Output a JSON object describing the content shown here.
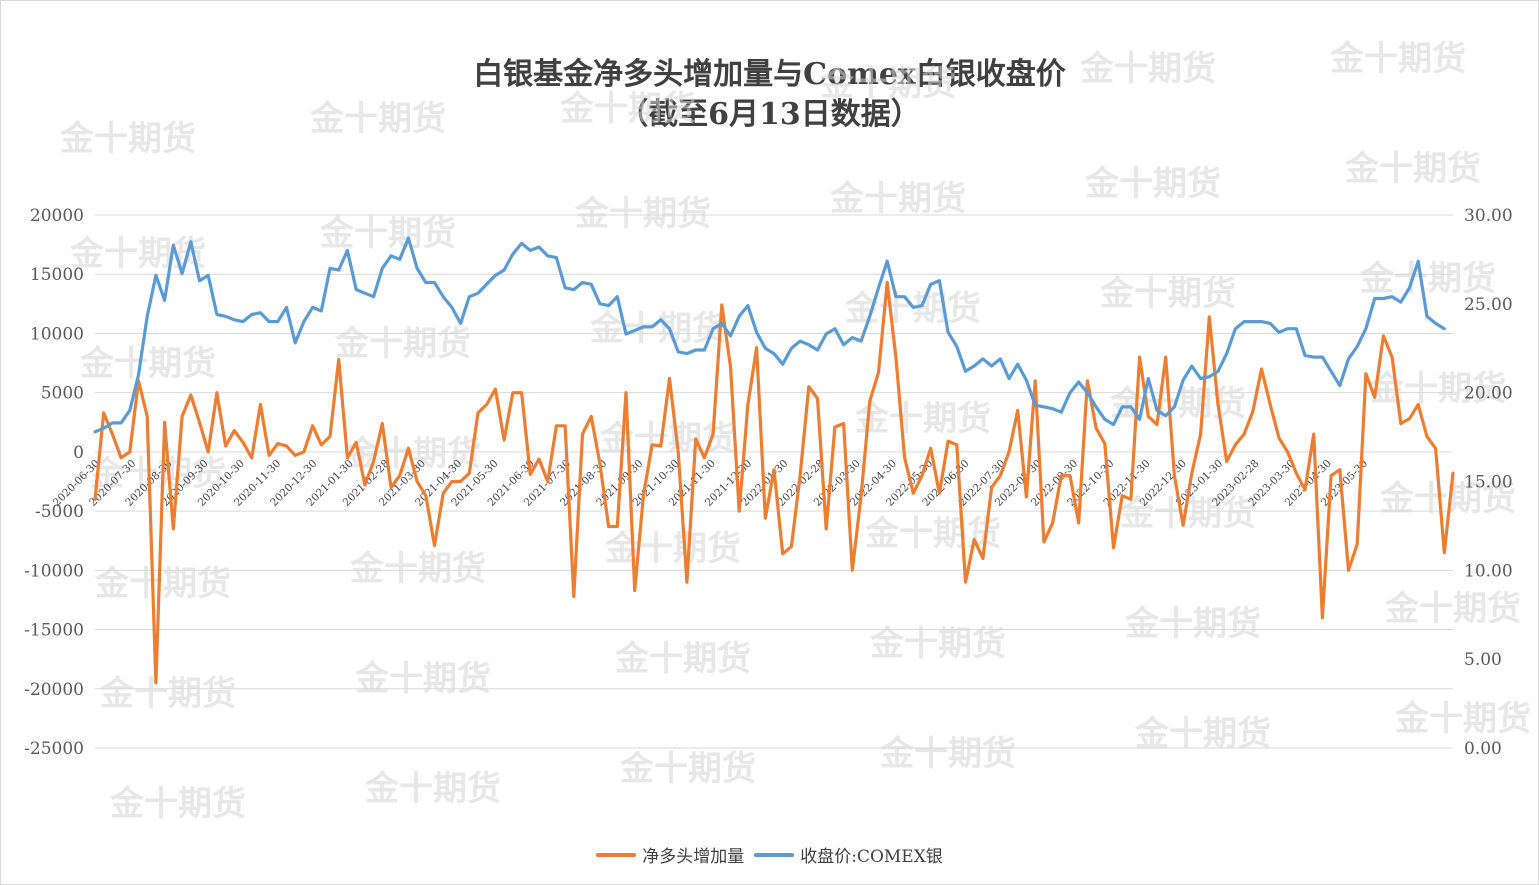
{
  "chart_data": {
    "type": "line",
    "title": "白银基金净多头增加量与Comex白银收盘价",
    "subtitle": "（截至6月13日数据）",
    "left_axis": {
      "ylim": [
        -25000,
        20000
      ],
      "ticks": [
        "20000",
        "15000",
        "10000",
        "5000",
        "0",
        "-5000",
        "-10000",
        "-15000",
        "-20000",
        "-25000"
      ]
    },
    "right_axis": {
      "ylim": [
        0,
        30
      ],
      "ticks": [
        "30.00",
        "25.00",
        "20.00",
        "15.00",
        "10.00",
        "5.00",
        "0.00"
      ]
    },
    "x_labels": [
      "2020-06-30",
      "2020-07-30",
      "2020-08-30",
      "2020-09-30",
      "2020-10-30",
      "2020-11-30",
      "2020-12-30",
      "2021-01-30",
      "2021-02-28",
      "2021-03-30",
      "2021-04-30",
      "2021-05-30",
      "2021-06-30",
      "2021-07-30",
      "2021-08-30",
      "2021-09-30",
      "2021-10-30",
      "2021-11-30",
      "2021-12-30",
      "2022-01-30",
      "2022-02-28",
      "2022-03-30",
      "2022-04-30",
      "2022-05-30",
      "2022-06-30",
      "2022-07-30",
      "2022-08-30",
      "2022-09-30",
      "2022-10-30",
      "2022-11-30",
      "2022-12-30",
      "2023-01-30",
      "2023-02-28",
      "2023-03-30",
      "2023-04-30",
      "2023-05-30"
    ],
    "series": [
      {
        "name": "净多头增加量",
        "axis": "left",
        "color": "#ED7D31",
        "values": [
          -4000,
          3300,
          1500,
          -500,
          0,
          6000,
          3000,
          -19500,
          2500,
          -6500,
          3000,
          4800,
          2500,
          0,
          5000,
          500,
          1800,
          800,
          -500,
          4000,
          -300,
          700,
          500,
          -300,
          0,
          2200,
          600,
          1300,
          7800,
          -500,
          800,
          -2800,
          -800,
          2400,
          -3000,
          -2000,
          300,
          -2500,
          -3700,
          -7900,
          -3500,
          -2500,
          -2500,
          -1800,
          3300,
          4000,
          5300,
          1000,
          5000,
          5000,
          -1900,
          -600,
          -2500,
          2200,
          2200,
          -12200,
          1500,
          3000,
          -1000,
          -6300,
          -6300,
          5000,
          -11700,
          -3700,
          600,
          500,
          6200,
          0,
          -11000,
          1100,
          -500,
          1500,
          12400,
          7200,
          -5000,
          4000,
          8800,
          -5600,
          -1500,
          -8600,
          -8000,
          -2000,
          5500,
          4500,
          -6500,
          2100,
          2400,
          -10000,
          -3700,
          4300,
          6700,
          14300,
          8000,
          -500,
          -3500,
          -2000,
          300,
          -3500,
          900,
          600,
          -11000,
          -7400,
          -9000,
          -3000,
          -2000,
          0,
          3500,
          -3800,
          6000,
          -7600,
          -6000,
          -2000,
          -2000,
          -6000,
          6000,
          2000,
          700,
          -8100,
          -3700,
          -4000,
          8000,
          3000,
          2300,
          8000,
          -2000,
          -6200,
          -1800,
          1500,
          11400,
          4000,
          -800,
          600,
          1500,
          3400,
          7000,
          4000,
          1200,
          0,
          -1800,
          -3200,
          1500,
          -14000,
          -2000,
          -1500,
          -10000,
          -7800,
          6600,
          4600,
          9800,
          8000,
          2400,
          2800,
          4000,
          1300,
          300,
          -8500,
          -1800
        ]
      },
      {
        "name": "收盘价:COMEX银",
        "axis": "right",
        "color": "#5B9BD5",
        "values": [
          17.8,
          18.0,
          18.3,
          18.3,
          19.0,
          21.0,
          24.3,
          26.6,
          25.2,
          28.3,
          26.7,
          28.5,
          26.3,
          26.6,
          24.4,
          24.3,
          24.1,
          24.0,
          24.4,
          24.5,
          24.0,
          24.0,
          24.8,
          22.8,
          24.0,
          24.8,
          24.6,
          27.0,
          26.9,
          28.0,
          25.8,
          25.6,
          25.4,
          27.0,
          27.7,
          27.5,
          28.7,
          27.0,
          26.2,
          26.2,
          25.4,
          24.8,
          23.9,
          25.4,
          25.6,
          26.1,
          26.6,
          26.9,
          27.8,
          28.4,
          28.0,
          28.2,
          27.7,
          27.6,
          25.9,
          25.8,
          26.2,
          26.1,
          25.0,
          24.9,
          25.4,
          23.3,
          23.5,
          23.7,
          23.7,
          24.1,
          23.6,
          22.3,
          22.2,
          22.4,
          22.4,
          23.6,
          23.9,
          23.2,
          24.3,
          24.9,
          23.4,
          22.5,
          22.2,
          21.6,
          22.5,
          22.9,
          22.7,
          22.4,
          23.3,
          23.6,
          22.7,
          23.1,
          22.9,
          24.3,
          25.9,
          27.4,
          25.4,
          25.4,
          24.8,
          24.9,
          26.1,
          26.3,
          23.4,
          22.6,
          21.2,
          21.5,
          21.9,
          21.5,
          21.9,
          20.8,
          21.6,
          20.7,
          19.3,
          19.2,
          19.1,
          18.9,
          20.0,
          20.6,
          20.0,
          19.2,
          18.5,
          18.2,
          19.2,
          19.2,
          18.5,
          20.8,
          19.0,
          18.7,
          19.2,
          20.7,
          21.5,
          20.8,
          20.9,
          21.2,
          22.2,
          23.6,
          24.0,
          24.0,
          24.0,
          23.9,
          23.4,
          23.6,
          23.6,
          22.1,
          22.0,
          22.0,
          21.2,
          20.4,
          21.9,
          22.6,
          23.6,
          25.3,
          25.3,
          25.4,
          25.1,
          25.9,
          27.4,
          24.3,
          23.9,
          23.6
        ]
      }
    ],
    "legend": {
      "placement": "bottom",
      "items": [
        "净多头增加量",
        "收盘价:COMEX银"
      ]
    },
    "grid": true
  },
  "watermark": "金十期货"
}
